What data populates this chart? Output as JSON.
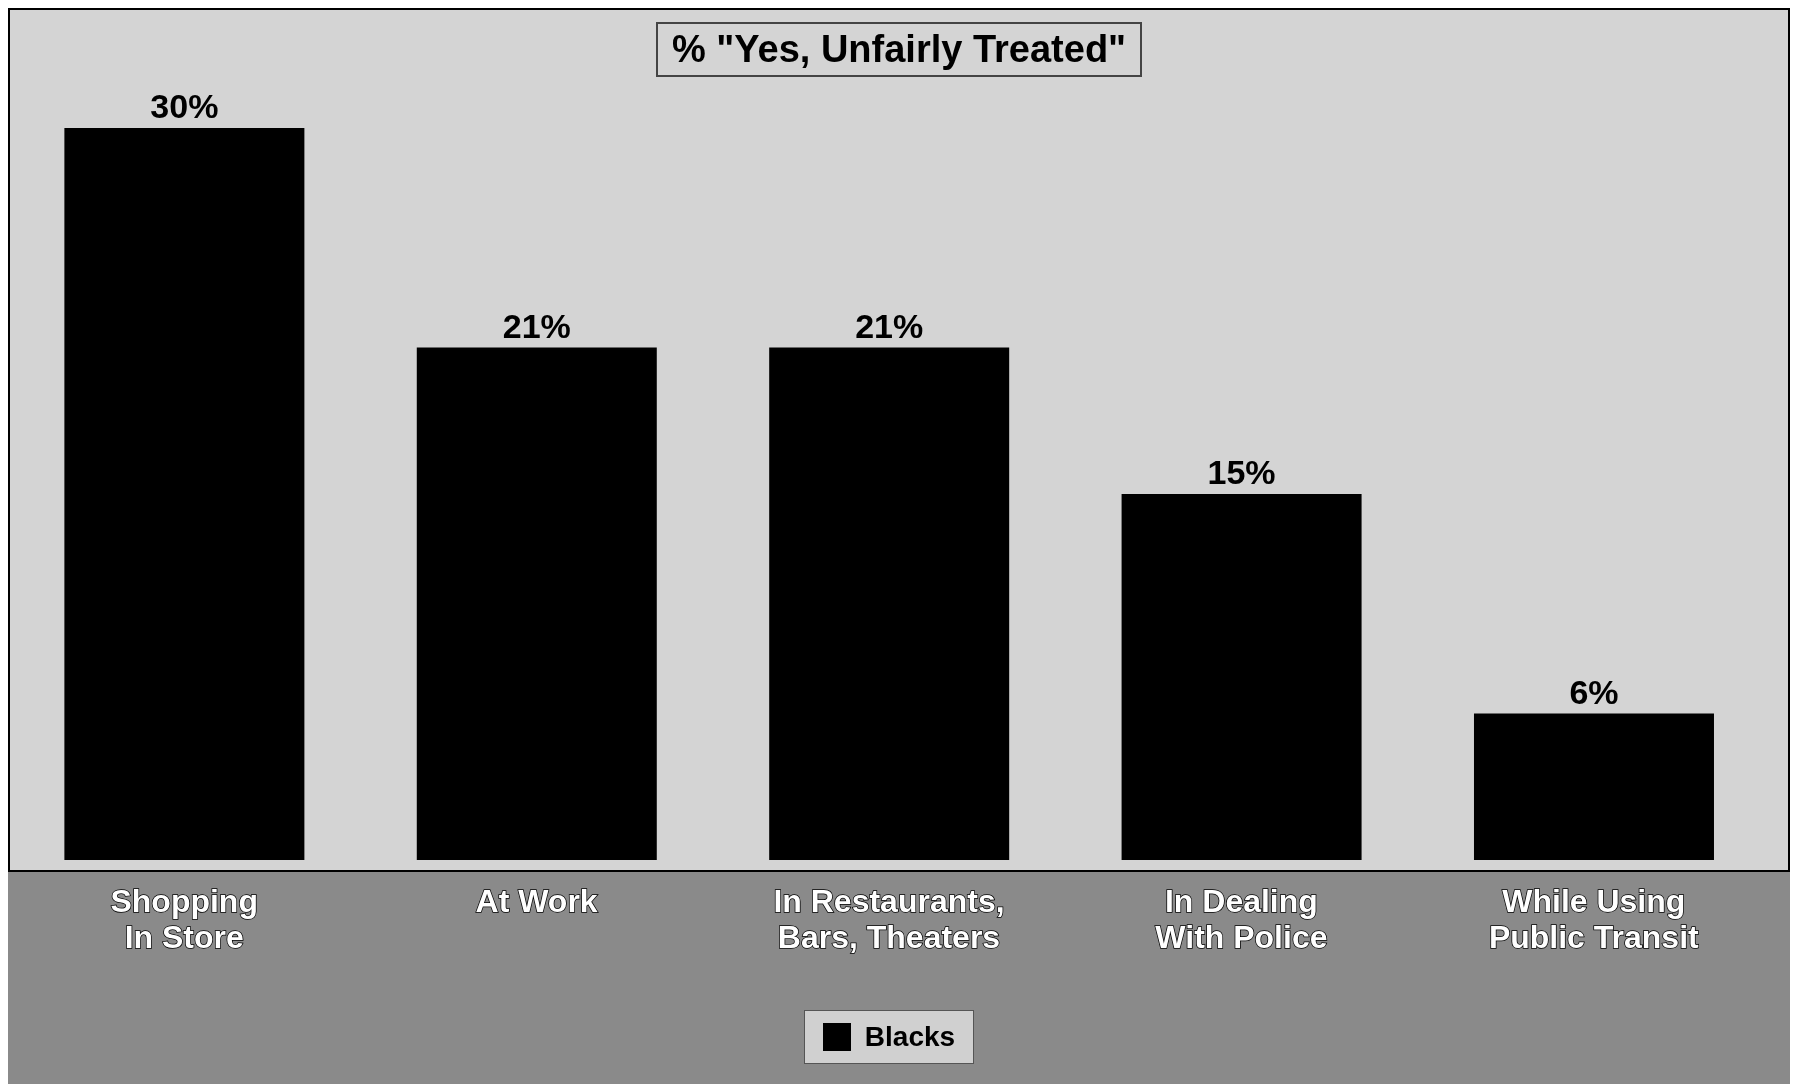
{
  "chart_data": {
    "type": "bar",
    "title": "% \"Yes, Unfairly Treated\"",
    "categories": [
      "Shopping\nIn Store",
      "At Work",
      "In Restaurants,\nBars, Theaters",
      "In Dealing\nWith Police",
      "While Using\nPublic Transit"
    ],
    "series": [
      {
        "name": "Blacks",
        "color": "#000000",
        "values": [
          30,
          21,
          21,
          15,
          6
        ],
        "value_labels": [
          "30%",
          "21%",
          "21%",
          "15%",
          "6%"
        ]
      }
    ],
    "legend": "bottom"
  }
}
